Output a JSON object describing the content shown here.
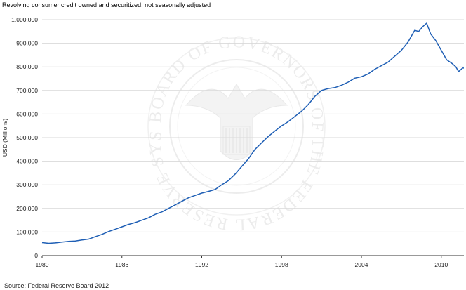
{
  "chart_data": {
    "type": "line",
    "title": "Revolving consumer credit owned and securitized, not seasonally adjusted",
    "ylabel": "USD (Millions)",
    "xlabel": "",
    "source": "Source: Federal Reserve Board 2012",
    "xlim": [
      1980,
      2011.7
    ],
    "ylim": [
      0,
      1000000
    ],
    "grid": true,
    "legend": "none",
    "line_color": "#1f5fb5",
    "x_ticks": [
      1980,
      1986,
      1992,
      1998,
      2004,
      2010
    ],
    "x_tick_labels": [
      "1980",
      "1986",
      "1992",
      "1998",
      "2004",
      "2010"
    ],
    "y_ticks": [
      0,
      100000,
      200000,
      300000,
      400000,
      500000,
      600000,
      700000,
      800000,
      900000,
      1000000
    ],
    "y_tick_labels": [
      "0",
      "100,000",
      "200,000",
      "300,000",
      "400,000",
      "500,000",
      "600,000",
      "700,000",
      "800,000",
      "900,000",
      "1,000,000"
    ],
    "watermark": "BOARD OF GOVERNORS OF THE FEDERAL RESERVE SYSTEM",
    "series": [
      {
        "values": [
          [
            1980.0,
            55000
          ],
          [
            1980.5,
            52000
          ],
          [
            1981.0,
            54000
          ],
          [
            1981.5,
            57000
          ],
          [
            1982.0,
            60000
          ],
          [
            1982.5,
            62000
          ],
          [
            1983.0,
            66000
          ],
          [
            1983.5,
            70000
          ],
          [
            1984.0,
            80000
          ],
          [
            1984.5,
            90000
          ],
          [
            1985.0,
            102000
          ],
          [
            1985.5,
            112000
          ],
          [
            1986.0,
            122000
          ],
          [
            1986.5,
            132000
          ],
          [
            1987.0,
            140000
          ],
          [
            1987.5,
            150000
          ],
          [
            1988.0,
            160000
          ],
          [
            1988.5,
            175000
          ],
          [
            1989.0,
            185000
          ],
          [
            1989.5,
            200000
          ],
          [
            1990.0,
            215000
          ],
          [
            1990.5,
            230000
          ],
          [
            1991.0,
            245000
          ],
          [
            1991.5,
            255000
          ],
          [
            1992.0,
            265000
          ],
          [
            1992.5,
            272000
          ],
          [
            1993.0,
            280000
          ],
          [
            1993.5,
            300000
          ],
          [
            1994.0,
            318000
          ],
          [
            1994.5,
            345000
          ],
          [
            1995.0,
            378000
          ],
          [
            1995.5,
            410000
          ],
          [
            1996.0,
            450000
          ],
          [
            1996.5,
            478000
          ],
          [
            1997.0,
            505000
          ],
          [
            1997.5,
            528000
          ],
          [
            1998.0,
            550000
          ],
          [
            1998.5,
            568000
          ],
          [
            1999.0,
            590000
          ],
          [
            1999.5,
            612000
          ],
          [
            2000.0,
            640000
          ],
          [
            2000.5,
            675000
          ],
          [
            2001.0,
            700000
          ],
          [
            2001.5,
            708000
          ],
          [
            2002.0,
            712000
          ],
          [
            2002.5,
            722000
          ],
          [
            2003.0,
            735000
          ],
          [
            2003.5,
            752000
          ],
          [
            2004.0,
            758000
          ],
          [
            2004.5,
            770000
          ],
          [
            2005.0,
            790000
          ],
          [
            2005.5,
            805000
          ],
          [
            2006.0,
            820000
          ],
          [
            2006.5,
            845000
          ],
          [
            2007.0,
            870000
          ],
          [
            2007.5,
            905000
          ],
          [
            2008.0,
            955000
          ],
          [
            2008.3,
            950000
          ],
          [
            2008.6,
            970000
          ],
          [
            2008.9,
            985000
          ],
          [
            2009.2,
            940000
          ],
          [
            2009.6,
            910000
          ],
          [
            2010.0,
            870000
          ],
          [
            2010.4,
            830000
          ],
          [
            2010.8,
            815000
          ],
          [
            2011.1,
            800000
          ],
          [
            2011.3,
            780000
          ],
          [
            2011.6,
            795000
          ],
          [
            2011.7,
            795000
          ]
        ]
      }
    ]
  }
}
